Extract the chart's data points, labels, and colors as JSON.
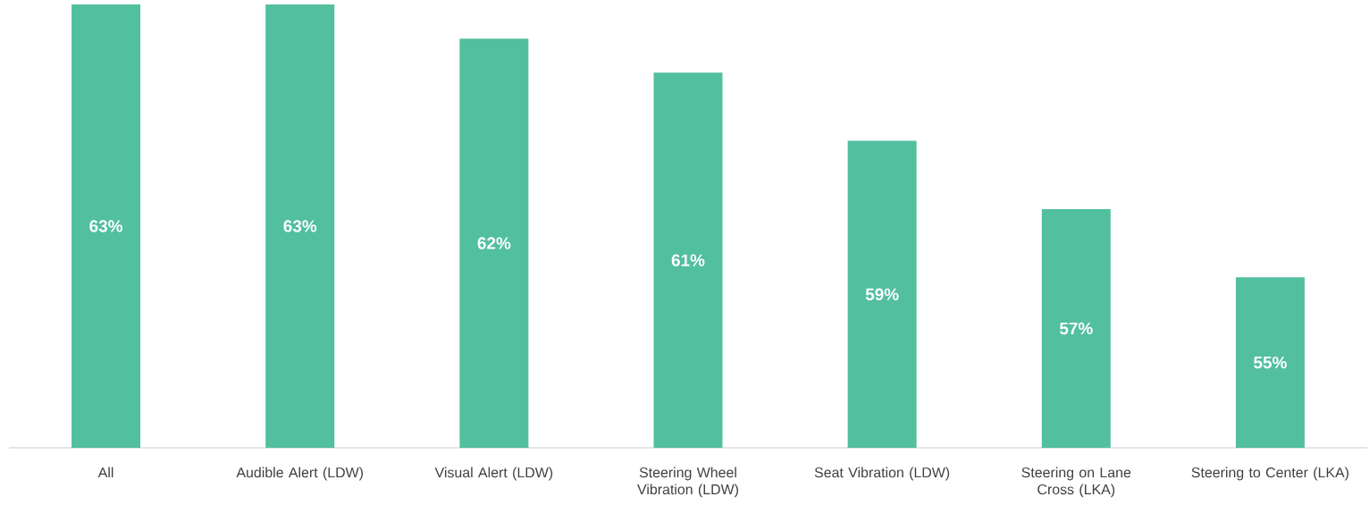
{
  "chart_data": {
    "type": "bar",
    "categories": [
      "All",
      "Audible Alert (LDW)",
      "Visual Alert (LDW)",
      "Steering Wheel Vibration (LDW)",
      "Seat Vibration (LDW)",
      "Steering on Lane Cross (LKA)",
      "Steering to Center (LKA)"
    ],
    "values": [
      63,
      63,
      62,
      61,
      59,
      57,
      55
    ],
    "value_labels": [
      "63%",
      "63%",
      "62%",
      "61%",
      "59%",
      "57%",
      "55%"
    ],
    "color": "#52bf9f",
    "ylim": [
      50,
      63
    ]
  }
}
